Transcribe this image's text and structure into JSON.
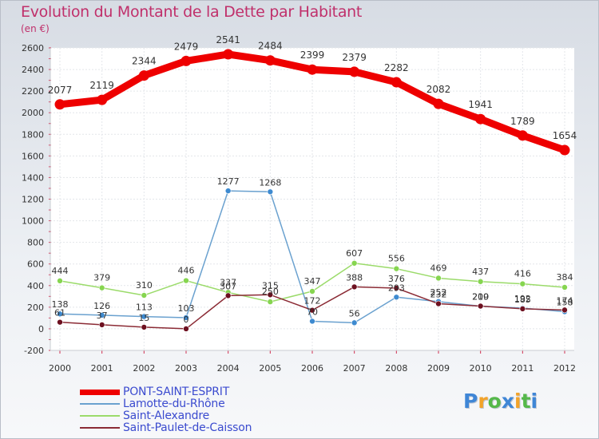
{
  "title": "Evolution du Montant de la Dette par Habitant",
  "subtitle": "(en €)",
  "brand": {
    "text": "Proxiti",
    "colors": [
      "#3f86d6",
      "#f2a32a",
      "#55b84a",
      "#3f86d6",
      "#f2a32a",
      "#55b84a",
      "#3f86d6"
    ]
  },
  "chart_data": {
    "type": "line",
    "title": "Evolution du Montant de la Dette par Habitant",
    "ylabel": "(en €)",
    "xlabel": "",
    "x": [
      2000,
      2001,
      2002,
      2003,
      2004,
      2005,
      2006,
      2007,
      2008,
      2009,
      2010,
      2011,
      2012
    ],
    "x_tick_labels": [
      "2000",
      "2001",
      "2002",
      "2003",
      "2004",
      "2005",
      "2006",
      "2007",
      "2008",
      "2009",
      "2010",
      "2011",
      "2012"
    ],
    "ylim": [
      -200,
      2600
    ],
    "y_ticks": [
      -200,
      0,
      200,
      400,
      600,
      800,
      1000,
      1200,
      1400,
      1600,
      1800,
      2000,
      2200,
      2400,
      2600
    ],
    "y_tick_labels": [
      "-200",
      "0",
      "200",
      "400",
      "600",
      "800",
      "1000",
      "1200",
      "1400",
      "1600",
      "1800",
      "2000",
      "2200",
      "2400",
      "2600"
    ],
    "grid": true,
    "legend_position": "bottom-left",
    "series": [
      {
        "name": "PONT-SAINT-ESPRIT",
        "color": "#ee0000",
        "values": [
          2077,
          2119,
          2344,
          2479,
          2541,
          2484,
          2399,
          2379,
          2282,
          2082,
          1941,
          1789,
          1654
        ],
        "labels": [
          "2077",
          "2119",
          "2344",
          "2479",
          "2541",
          "2484",
          "2399",
          "2379",
          "2282",
          "2082",
          "1941",
          "1789",
          "1654"
        ]
      },
      {
        "name": "Lamotte-du-Rhône",
        "color": "#6aa1cf",
        "marker_color": "#3d8ad0",
        "values": [
          138,
          126,
          113,
          103,
          1277,
          1268,
          70,
          56,
          293,
          252,
          209,
          192,
          158
        ],
        "labels": [
          "138",
          "126",
          "113",
          "103",
          "1277",
          "1268",
          "70",
          "56",
          "293",
          "252",
          "209",
          "192",
          "158"
        ]
      },
      {
        "name": "Saint-Alexandre",
        "color": "#9bdb6a",
        "marker_color": "#86d550",
        "values": [
          444,
          379,
          310,
          446,
          337,
          250,
          347,
          607,
          556,
          469,
          437,
          416,
          384
        ],
        "labels": [
          "444",
          "379",
          "310",
          "446",
          "337",
          "250",
          "347",
          "607",
          "556",
          "469",
          "437",
          "416",
          "384"
        ]
      },
      {
        "name": "Saint-Paulet-de-Caisson",
        "color": "#8b2b35",
        "marker_color": "#6d1020",
        "values": [
          61,
          37,
          15,
          0,
          307,
          315,
          172,
          388,
          376,
          232,
          210,
          185,
          174
        ],
        "labels": [
          "61",
          "37",
          "15",
          "0",
          "307",
          "315",
          "172",
          "388",
          "376",
          "232",
          "210",
          "185",
          "174"
        ]
      }
    ]
  }
}
